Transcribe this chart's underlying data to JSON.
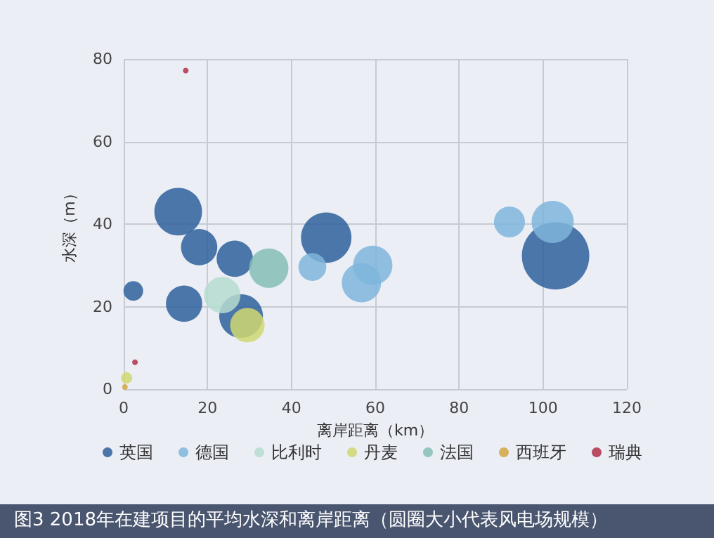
{
  "chart_data": {
    "type": "bubble",
    "title": "图3 2018年在建项目的平均水深和离岸距离（圆圈大小代表风电场规模）",
    "xlabel": "离岸距离（km）",
    "ylabel": "水深（m）",
    "xlim": [
      0,
      120
    ],
    "xticks": [
      0,
      20,
      40,
      60,
      80,
      100,
      120
    ],
    "ylim": [
      0,
      80
    ],
    "yticks": [
      0,
      20,
      40,
      60,
      80
    ],
    "grid": true,
    "legend": "bottom",
    "series": [
      {
        "name": "英国",
        "color": "#2f609b",
        "x": [
          13,
          18,
          26.5,
          2.3,
          14.4,
          28,
          48.3,
          103
        ],
        "values": [
          43,
          34.4,
          31.6,
          23.8,
          20.7,
          17.7,
          36.7,
          32.3
        ],
        "sizes": [
          0.5,
          0.29,
          0.29,
          0.085,
          0.29,
          0.42,
          0.56,
          1
        ]
      },
      {
        "name": "德国",
        "color": "#7fb5dc",
        "x": [
          45,
          56.7,
          59.4,
          92,
          102.3
        ],
        "values": [
          29.6,
          25.8,
          30,
          40.5,
          40.5
        ],
        "sizes": [
          0.17,
          0.34,
          0.34,
          0.21,
          0.39
        ]
      },
      {
        "name": "比利时",
        "color": "#b5dccf",
        "x": [
          23.5
        ],
        "values": [
          22.8
        ],
        "sizes": [
          0.29
        ]
      },
      {
        "name": "丹麦",
        "color": "#cfd870",
        "x": [
          29.5,
          0.7
        ],
        "values": [
          15.5,
          2.7
        ],
        "sizes": [
          0.26,
          0.028
        ]
      },
      {
        "name": "法国",
        "color": "#86bdb5",
        "x": [
          34.6
        ],
        "values": [
          29.3
        ],
        "sizes": [
          0.34
        ]
      },
      {
        "name": "西班牙",
        "color": "#d3a640",
        "x": [
          0.3
        ],
        "values": [
          0.5
        ],
        "sizes": [
          0.007
        ]
      },
      {
        "name": "瑞典",
        "color": "#b0304a",
        "x": [
          14.8,
          2.7
        ],
        "values": [
          77.2,
          6.5
        ],
        "sizes": [
          0.007,
          0.007
        ]
      }
    ]
  }
}
